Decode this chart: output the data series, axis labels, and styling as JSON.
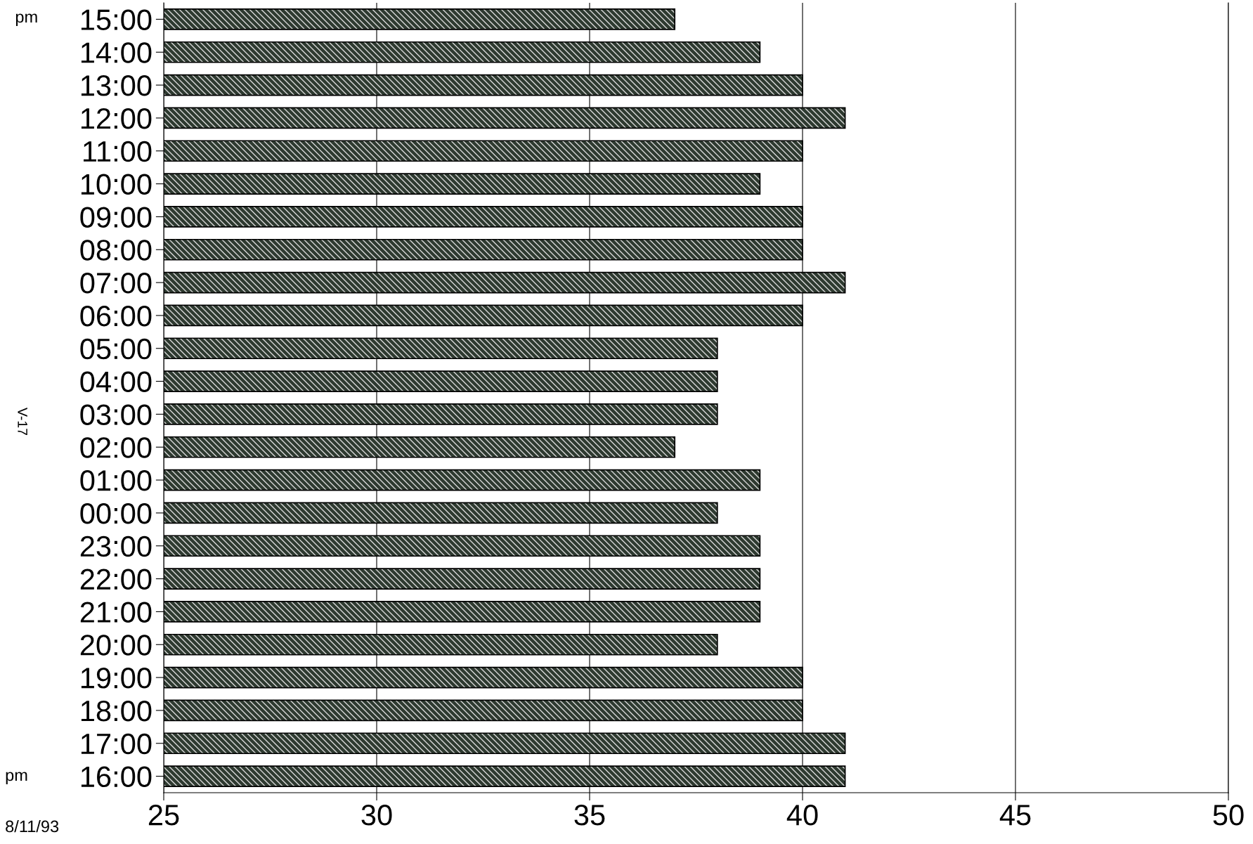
{
  "chart_data": {
    "type": "bar",
    "orientation": "horizontal",
    "categories": [
      "15:00",
      "14:00",
      "13:00",
      "12:00",
      "11:00",
      "10:00",
      "09:00",
      "08:00",
      "07:00",
      "06:00",
      "05:00",
      "04:00",
      "03:00",
      "02:00",
      "01:00",
      "00:00",
      "23:00",
      "22:00",
      "21:00",
      "20:00",
      "19:00",
      "18:00",
      "17:00",
      "16:00"
    ],
    "values": [
      37,
      39,
      40,
      41,
      40,
      39,
      40,
      40,
      41,
      40,
      38,
      38,
      38,
      37,
      39,
      38,
      39,
      39,
      39,
      38,
      40,
      40,
      41,
      41
    ],
    "color": "#2e3a30",
    "xlim": [
      25,
      50
    ],
    "xticks": [
      25,
      30,
      35,
      40,
      45,
      50
    ],
    "grid": "x",
    "annotations": [
      "pm",
      "pm",
      "8/11/93",
      "V-17"
    ]
  }
}
